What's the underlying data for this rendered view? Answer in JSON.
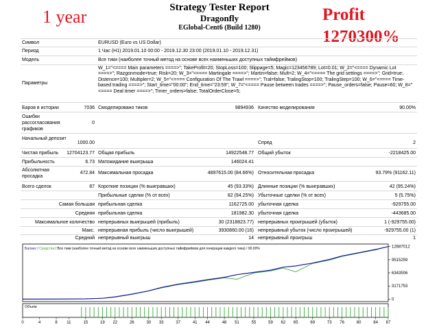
{
  "overlay": {
    "left": "1 year",
    "right_line1": "Profit",
    "right_line2": "1270300%"
  },
  "report": {
    "title": "Strategy Tester Report",
    "expert": "Dragonfly",
    "server": "EGlobal-Cent6 (Build 1280)"
  },
  "header_rows": {
    "symbol_label": "Символ",
    "symbol_value": "EURUSD (Euro vs US Dollar)",
    "period_label": "Период",
    "period_value": "1 Час (H1) 2019.01.10 00:00 - 2019.12.30 23:00 (2019.01.10 - 2019.12.31)",
    "model_label": "Модель",
    "model_value": "Все тики (наиболее точный метод на основе всех наименьших доступных таймфреймов)",
    "params_label": "Параметры",
    "params_value": "W_1=\"<==== Main parameters ====>\"; TakeProfit=20; StopLoss=100; Slippage=5; Magic=123456789; Lot=0.01; W_2=\"<==== Dynamic Lot ====>\"; Razgonmode=true; Risk=20; W_3=\"<==== Martingale ====>\"; Martin=false; Mult=2; W_4=\"<==== The grid settings ====>\"; Grid=true; Distence=100; Multipler=2; W_5=\"<==== Configuration Of The Trawl ====>\"; Tral=false; TralingStop=100; TralingStep=100; W_6=\"<==== Time-based trading ====>\"; Start_time=\"00:00\"; End_time=\"23:59\"; W_7=\"<==== Pause between trades ====>\"; Pause_orders=false; Pause=60; W_8=\"<==== Deal timer ====>\"; Timer_orders=false; TotalOrderClose=5;"
  },
  "stats": {
    "bars_label": "Баров в истории",
    "bars_value": "7036",
    "ticks_label": "Смоделировано тиков",
    "ticks_value": "9894936",
    "quality_label": "Качество моделирования",
    "quality_value": "90.00%",
    "errors_label": "Ошибки рассогласования графиков",
    "errors_value": "0",
    "deposit_label": "Начальный депозит",
    "deposit_value": "1000.00",
    "spread_label": "Спред",
    "spread_value": "2",
    "netprofit_label": "Чистая прибыль",
    "netprofit_value": "12704123.77",
    "grossprofit_label": "Общая прибыль",
    "grossprofit_value": "14922548.77",
    "grossloss_label": "Общий убыток",
    "grossloss_value": "-2218425.00",
    "pf_label": "Прибыльность",
    "pf_value": "6.73",
    "payoff_label": "Матожидание выигрыша",
    "payoff_value": "146024.41",
    "absdd_label": "Абсолютная просадка",
    "absdd_value": "472.84",
    "maxdd_label": "Максимальная просадка",
    "maxdd_value": "4897615.00 (84.66%)",
    "reldd_label": "Относительная просадка",
    "reldd_value": "93.79% (91162.11)",
    "trades_label": "Всего сделок",
    "trades_value": "87",
    "short_label": "Короткие позиции (% выигравших)",
    "short_value": "45 (93.33%)",
    "long_label": "Длинные позиции (% выигравших)",
    "long_value": "42 (95.24%)",
    "profittr_label": "Прибыльные сделки (% от всех)",
    "profittr_value": "82 (94.25%)",
    "losstr_label": "Убыточные сделки (% от всех)",
    "losstr_value": "5 (5.75%)",
    "largest_label": "Самая большая",
    "largest_profit_label": "прибыльная сделка",
    "largest_profit_value": "1162725.00",
    "largest_loss_label": "убыточная сделка",
    "largest_loss_value": "-929755.00",
    "average_label": "Средняя",
    "average_profit_label": "прибыльная сделка",
    "average_profit_value": "181982.30",
    "average_loss_label": "убыточная сделка",
    "average_loss_value": "-443685.00",
    "maxcount_label": "Максимальное количество",
    "maxcount_wins_label": "непрерывных выигрышей (прибыль)",
    "maxcount_wins_value": "30 (2318823.77)",
    "maxcount_loss_label": "непрерывных проигрышей (убыток)",
    "maxcount_loss_value": "1 (-929755.00)",
    "max_label": "Макс.",
    "max_profit_label": "непрерывная прибыль (число выигрышей)",
    "max_profit_value": "3930860.00 (16)",
    "max_loss_label": "непрерывный убыток (число проигрышей)",
    "max_loss_value": "-929755.00 (1)",
    "avgcons_label": "Средний",
    "avgcons_wins_label": "непрерывный выигрыш",
    "avgcons_wins_value": "14",
    "avgcons_loss_label": "непрерывный проигрыш",
    "avgcons_loss_value": "1"
  },
  "chart_data": {
    "type": "line",
    "legend_text": "Баланс / Средства / Все тики (наиболее точный метод на основе всех наименьших доступных таймфреймов для генерации каждого тика) / 90.00%",
    "legend_balance": "Баланс",
    "legend_equity": "Средства",
    "volume_label": "Объем",
    "y_ticks": [
      12687012,
      9515259,
      6343506,
      3171753,
      0
    ],
    "ylim": [
      -600000,
      13300000
    ],
    "x_ticks": [
      0,
      4,
      8,
      11,
      15,
      19,
      22,
      26,
      30,
      33,
      37,
      41,
      44,
      48,
      51,
      55,
      59,
      62,
      65,
      69,
      73,
      76,
      80,
      84,
      87
    ],
    "x": [
      0,
      4,
      8,
      11,
      15,
      19,
      22,
      26,
      30,
      33,
      37,
      41,
      44,
      48,
      51,
      55,
      59,
      62,
      65,
      69,
      73,
      76,
      80,
      84,
      87
    ],
    "series": [
      {
        "name": "Баланс",
        "color": "#1a1aa0",
        "values": [
          0,
          3000,
          10000,
          25000,
          60000,
          200000,
          550000,
          1200000,
          2000000,
          2800000,
          3600000,
          4200000,
          4700000,
          5250000,
          5900000,
          6450000,
          7000000,
          7700000,
          8000000,
          8700000,
          9600000,
          10400000,
          11200000,
          12000000,
          12687012
        ]
      },
      {
        "name": "Средства",
        "color": "#38a838",
        "values": [
          0,
          3000,
          10000,
          25000,
          60000,
          200000,
          500000,
          1150000,
          1950000,
          2700000,
          3500000,
          4050000,
          4550000,
          5150000,
          4800000,
          6300000,
          6800000,
          7500000,
          6600000,
          8600000,
          9400000,
          10300000,
          11100000,
          11900000,
          12687012
        ]
      }
    ],
    "volume_start": 14,
    "volume_end": 87,
    "colors": {
      "frame": "#000000",
      "balance": "#1a1aa0",
      "equity": "#38a838",
      "volume": "#38a838",
      "grid": "#d0d0d0"
    }
  }
}
